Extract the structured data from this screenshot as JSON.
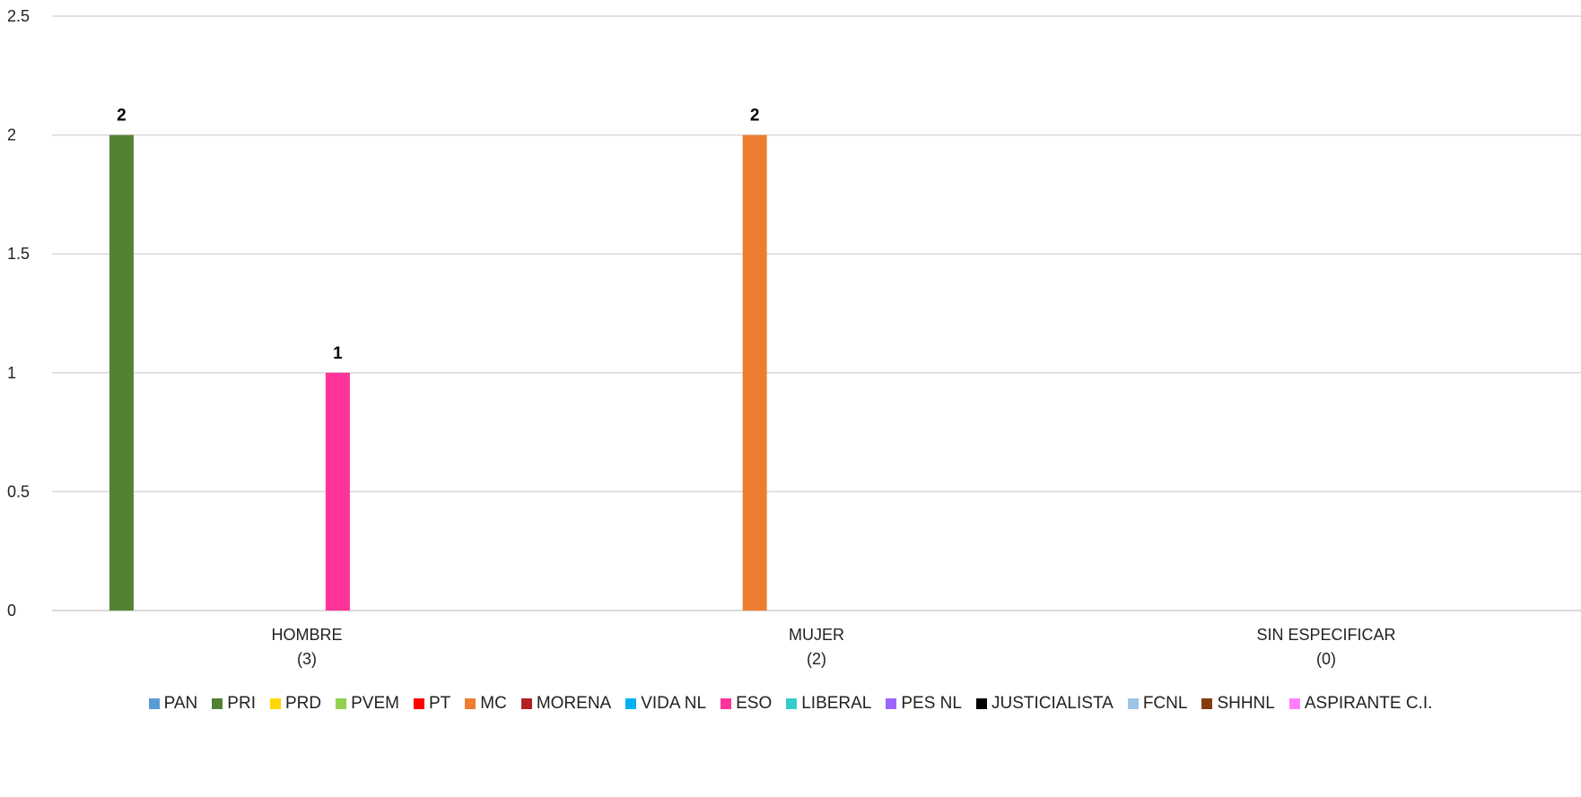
{
  "chart_data": {
    "type": "bar",
    "title": "",
    "xlabel": "",
    "ylabel": "",
    "ylim": [
      0,
      2.5
    ],
    "yticks": [
      "0",
      "0.5",
      "1",
      "1.5",
      "2",
      "2.5"
    ],
    "grid": true,
    "legend_position": "bottom",
    "categories": [
      {
        "name": "HOMBRE",
        "count": "(3)"
      },
      {
        "name": "MUJER",
        "count": "(2)"
      },
      {
        "name": "SIN ESPECIFICAR",
        "count": "(0)"
      }
    ],
    "series": [
      {
        "name": "PAN",
        "color": "#5B9BD5",
        "values": [
          0,
          0,
          0
        ]
      },
      {
        "name": "PRI",
        "color": "#548235",
        "values": [
          2,
          0,
          0
        ]
      },
      {
        "name": "PRD",
        "color": "#FFD700",
        "values": [
          0,
          0,
          0
        ]
      },
      {
        "name": "PVEM",
        "color": "#92D050",
        "values": [
          0,
          0,
          0
        ]
      },
      {
        "name": "PT",
        "color": "#FF0000",
        "values": [
          0,
          0,
          0
        ]
      },
      {
        "name": "MC",
        "color": "#ED7D31",
        "values": [
          0,
          2,
          0
        ]
      },
      {
        "name": "MORENA",
        "color": "#B22222",
        "values": [
          0,
          0,
          0
        ]
      },
      {
        "name": "VIDA NL",
        "color": "#00B0F0",
        "values": [
          0,
          0,
          0
        ]
      },
      {
        "name": "ESO",
        "color": "#FF3399",
        "values": [
          1,
          0,
          0
        ]
      },
      {
        "name": "LIBERAL",
        "color": "#33CCCC",
        "values": [
          0,
          0,
          0
        ]
      },
      {
        "name": "PES NL",
        "color": "#9966FF",
        "values": [
          0,
          0,
          0
        ]
      },
      {
        "name": "JUSTICIALISTA",
        "color": "#000000",
        "values": [
          0,
          0,
          0
        ]
      },
      {
        "name": "FCNL",
        "color": "#9DC3E6",
        "values": [
          0,
          0,
          0
        ]
      },
      {
        "name": "SHHNL",
        "color": "#843C0C",
        "values": [
          0,
          0,
          0
        ]
      },
      {
        "name": "ASPIRANTE C.I.",
        "color": "#FF80FF",
        "values": [
          0,
          0,
          0
        ]
      }
    ]
  }
}
